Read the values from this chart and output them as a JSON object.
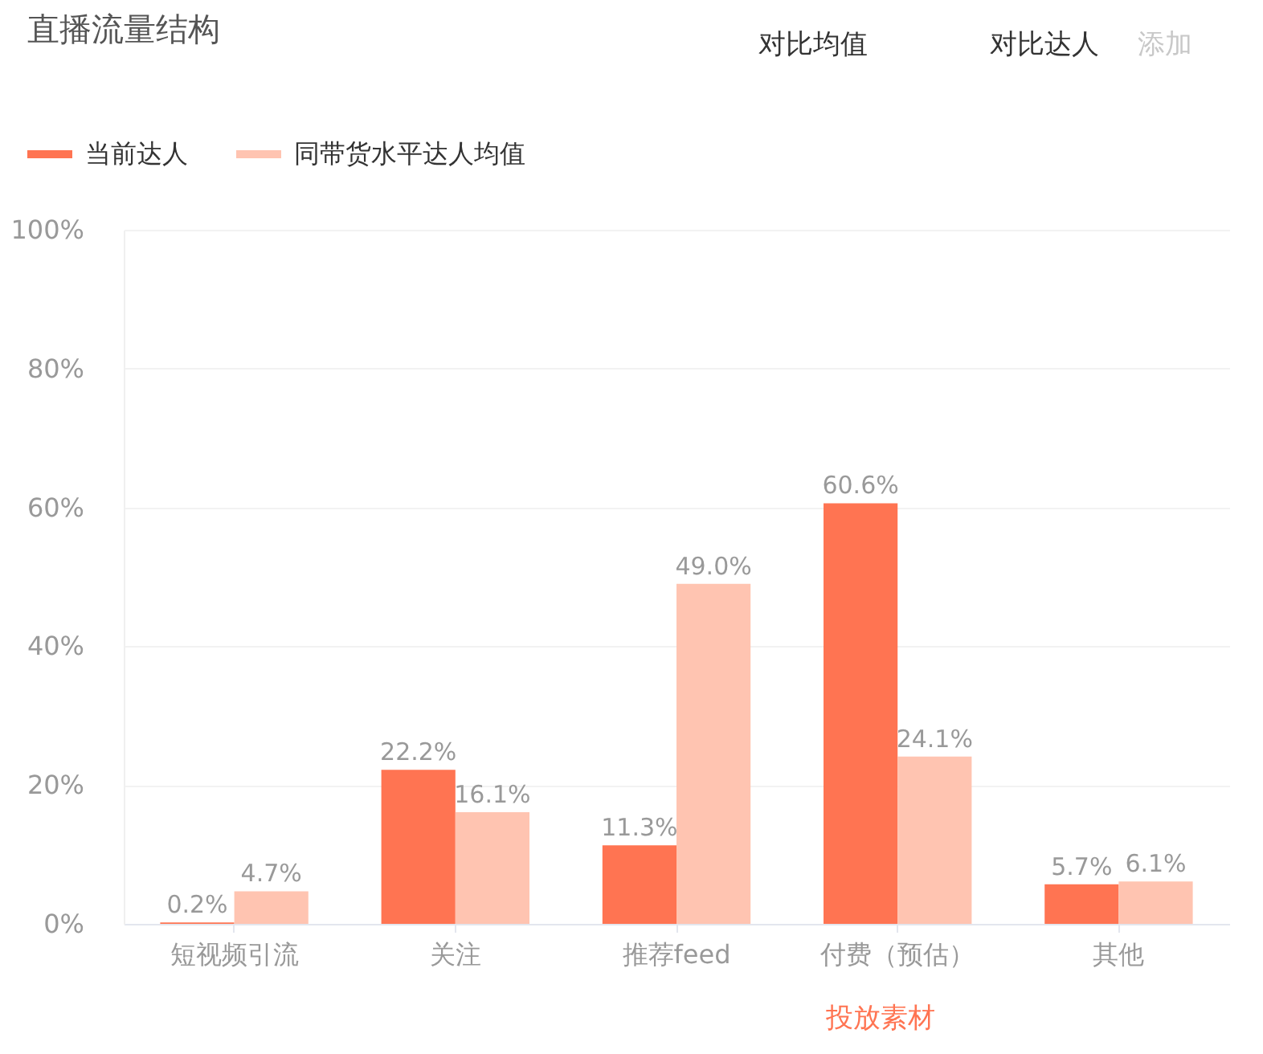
{
  "chart_data": {
    "type": "bar",
    "title": "直播流量结构",
    "categories": [
      "短视频引流",
      "关注",
      "推荐feed",
      "付费（预估）",
      "其他"
    ],
    "series": [
      {
        "name": "当前达人",
        "color": "#ff7452",
        "values": [
          0.2,
          22.2,
          11.3,
          60.6,
          5.7
        ],
        "value_labels": [
          "0.2%",
          "22.2%",
          "11.3%",
          "60.6%",
          "5.7%"
        ]
      },
      {
        "name": "同带货水平达人均值",
        "color": "#ffc4b1",
        "values": [
          4.7,
          16.1,
          49.0,
          24.1,
          6.1
        ],
        "value_labels": [
          "4.7%",
          "16.1%",
          "49.0%",
          "24.1%",
          "6.1%"
        ]
      }
    ],
    "ylim": [
      0,
      100
    ],
    "yticks": [
      {
        "value": 0,
        "label": "0%"
      },
      {
        "value": 20,
        "label": "20%"
      },
      {
        "value": 40,
        "label": "40%"
      },
      {
        "value": 60,
        "label": "60%"
      },
      {
        "value": 80,
        "label": "80%"
      },
      {
        "value": 100,
        "label": "100%"
      }
    ],
    "grid": "y",
    "legend": "top left",
    "annotations": [
      "对比均值",
      "对比达人",
      "添加",
      "投放素材"
    ]
  }
}
